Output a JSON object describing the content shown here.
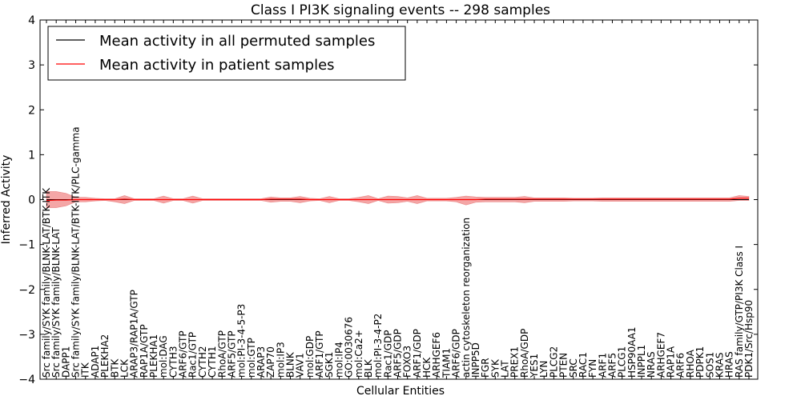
{
  "chart_data": {
    "type": "line",
    "title": "Class I PI3K signaling events -- 298 samples",
    "xlabel": "Cellular Entities",
    "ylabel": "Inferred Activity",
    "ylim": [
      -4,
      4
    ],
    "yticks": [
      "−4",
      "−3",
      "−2",
      "−1",
      "0",
      "1",
      "2",
      "3",
      "4"
    ],
    "yticks_values": [
      -4,
      -3,
      -2,
      -1,
      0,
      1,
      2,
      3,
      4
    ],
    "legend_position": "top-left",
    "grid": false,
    "categories": [
      "Src family/SYK family/BLNK-LAT/BTK-ITK",
      "Src family/SYK family/BLNK-LAT",
      "DAPP1",
      "Src family/SYK family/BLNK-LAT/BTK-ITK/PLC-gamma",
      "ITK",
      "ADAP1",
      "PLEKHA2",
      "BTK",
      "LCK",
      "ARAP3/RAP1A/GTP",
      "RAP1A/GTP",
      "PLEKHA1",
      "mol:DAG",
      "CYTH3",
      "ARF6/GTP",
      "Rac1/GTP",
      "CYTH2",
      "CYTH1",
      "RhoA/GTP",
      "ARF5/GTP",
      "mol:PI-3-4-5-P3",
      "mol:GTP",
      "ARAP3",
      "ZAP70",
      "mol:IP3",
      "BLNK",
      "VAV1",
      "mol:GDP",
      "ARF1/GTP",
      "SGK1",
      "mol:IP4",
      "GO:0030676",
      "mol:Ca2+",
      "BLK",
      "mol:PI-3-4-P2",
      "Rac1/GDP",
      "ARF5/GDP",
      "FOXO3",
      "ARF1/GDP",
      "HCK",
      "ARHGEF6",
      "TIAM1",
      "ARF6/GDP",
      "actin cytoskeleton reorganization",
      "INPP5D",
      "FGR",
      "SYK",
      "LAT",
      "PREX1",
      "RhoA/GDP",
      "YES1",
      "LYN",
      "PLCG2",
      "PTEN",
      "SRC",
      "RAC1",
      "FYN",
      "ARF1",
      "ARF5",
      "PLCG1",
      "HSP90AA1",
      "INPPL1",
      "NRAS",
      "ARHGEF7",
      "RAP1A",
      "ARF6",
      "RHOA",
      "PDPK1",
      "SOS1",
      "KRAS",
      "HRAS",
      "RAS family/GTP/PI3K Class I",
      "PDK1/Src/Hsp90"
    ],
    "series": [
      {
        "name": "Mean activity in all permuted samples",
        "color": "#000000",
        "values": [
          0.0,
          0.0,
          0.0,
          0.0,
          0.0,
          0.0,
          0.0,
          0.0,
          0.0,
          0.0,
          0.0,
          0.0,
          0.0,
          0.0,
          0.0,
          0.0,
          0.0,
          0.0,
          0.0,
          0.0,
          0.0,
          0.0,
          0.0,
          0.0,
          0.0,
          0.0,
          0.0,
          0.0,
          0.0,
          0.0,
          0.0,
          0.0,
          0.0,
          0.0,
          0.0,
          0.0,
          0.0,
          0.0,
          0.0,
          0.0,
          0.0,
          0.0,
          0.0,
          0.0,
          0.0,
          0.0,
          0.0,
          0.0,
          0.0,
          0.0,
          0.0,
          0.0,
          0.0,
          0.0,
          0.0,
          0.0,
          0.0,
          0.0,
          0.0,
          0.0,
          0.0,
          0.0,
          0.0,
          0.0,
          0.0,
          0.0,
          0.0,
          0.0,
          0.0,
          0.0,
          0.0,
          0.0,
          0.0
        ]
      },
      {
        "name": "Mean activity in patient samples",
        "color": "#ff0000",
        "band_color": "#f08080",
        "values": [
          -0.02,
          -0.01,
          -0.01,
          0.0,
          0.0,
          0.0,
          0.0,
          0.0,
          0.01,
          0.0,
          0.0,
          0.0,
          0.0,
          0.0,
          0.0,
          0.0,
          0.0,
          0.0,
          0.0,
          0.0,
          0.0,
          0.0,
          0.0,
          0.01,
          0.01,
          0.01,
          0.01,
          0.0,
          0.0,
          0.0,
          0.0,
          0.0,
          0.0,
          0.0,
          0.0,
          0.0,
          0.0,
          0.0,
          0.0,
          0.0,
          0.0,
          0.0,
          0.0,
          0.0,
          0.0,
          0.01,
          0.01,
          0.01,
          0.01,
          0.01,
          0.01,
          0.01,
          0.01,
          0.01,
          0.01,
          0.01,
          0.01,
          0.01,
          0.01,
          0.01,
          0.01,
          0.01,
          0.01,
          0.01,
          0.01,
          0.01,
          0.01,
          0.01,
          0.01,
          0.01,
          0.01,
          0.03,
          0.03
        ],
        "band_upper": [
          0.18,
          0.18,
          0.14,
          0.05,
          0.05,
          0.03,
          0.02,
          0.02,
          0.09,
          0.02,
          0.02,
          0.02,
          0.08,
          0.02,
          0.02,
          0.08,
          0.02,
          0.02,
          0.02,
          0.02,
          0.02,
          0.02,
          0.02,
          0.06,
          0.04,
          0.04,
          0.07,
          0.03,
          0.02,
          0.07,
          0.02,
          0.02,
          0.05,
          0.09,
          0.02,
          0.08,
          0.07,
          0.04,
          0.09,
          0.03,
          0.03,
          0.03,
          0.05,
          0.08,
          0.06,
          0.05,
          0.05,
          0.05,
          0.05,
          0.07,
          0.04,
          0.04,
          0.04,
          0.04,
          0.03,
          0.03,
          0.03,
          0.04,
          0.04,
          0.04,
          0.04,
          0.04,
          0.04,
          0.04,
          0.04,
          0.04,
          0.04,
          0.04,
          0.04,
          0.04,
          0.04,
          0.09,
          0.07
        ],
        "band_lower": [
          -0.18,
          -0.18,
          -0.14,
          -0.05,
          -0.05,
          -0.03,
          -0.02,
          -0.05,
          -0.09,
          -0.02,
          -0.02,
          -0.02,
          -0.08,
          -0.02,
          -0.02,
          -0.08,
          -0.02,
          -0.02,
          -0.02,
          -0.02,
          -0.02,
          -0.02,
          -0.02,
          -0.06,
          -0.04,
          -0.04,
          -0.07,
          -0.03,
          -0.02,
          -0.07,
          -0.02,
          -0.02,
          -0.05,
          -0.09,
          -0.02,
          -0.08,
          -0.07,
          -0.04,
          -0.09,
          -0.03,
          -0.03,
          -0.03,
          -0.05,
          -0.12,
          -0.06,
          -0.05,
          -0.05,
          -0.05,
          -0.05,
          -0.07,
          -0.04,
          -0.04,
          -0.04,
          -0.04,
          -0.03,
          -0.03,
          -0.03,
          -0.04,
          -0.04,
          -0.04,
          -0.04,
          -0.04,
          -0.04,
          -0.04,
          -0.04,
          -0.04,
          -0.04,
          -0.04,
          -0.04,
          -0.04,
          -0.04,
          -0.02,
          -0.02
        ]
      }
    ]
  }
}
